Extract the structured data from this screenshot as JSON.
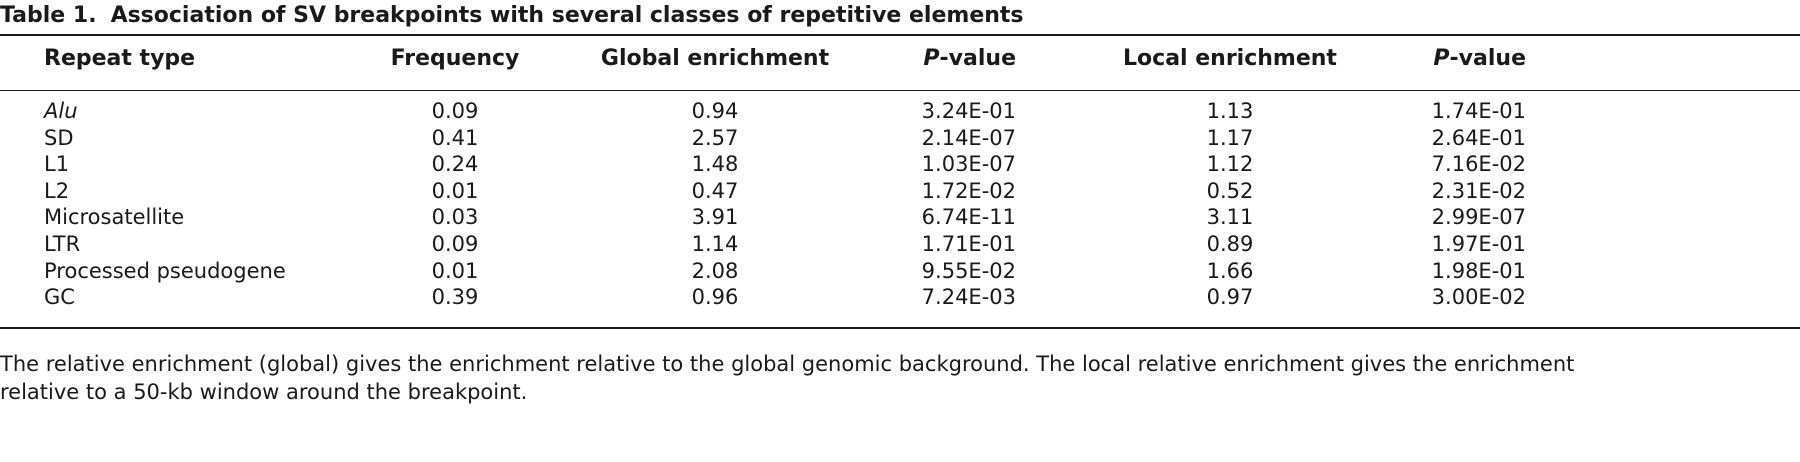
{
  "caption": {
    "label": "Table 1.",
    "title": "Association of SV breakpoints with several classes of repetitive elements"
  },
  "header": {
    "repeat_type": "Repeat type",
    "frequency": "Frequency",
    "global_enrichment": "Global enrichment",
    "p_value_1_italic": "P",
    "p_value_1_rest": "-value",
    "local_enrichment": "Local enrichment",
    "p_value_2_italic": "P",
    "p_value_2_rest": "-value"
  },
  "rows": [
    {
      "repeat_type": "Alu",
      "italic": true,
      "frequency": "0.09",
      "global_enrichment": "0.94",
      "global_p": "3.24E-01",
      "local_enrichment": "1.13",
      "local_p": "1.74E-01"
    },
    {
      "repeat_type": "SD",
      "italic": false,
      "frequency": "0.41",
      "global_enrichment": "2.57",
      "global_p": "2.14E-07",
      "local_enrichment": "1.17",
      "local_p": "2.64E-01"
    },
    {
      "repeat_type": "L1",
      "italic": false,
      "frequency": "0.24",
      "global_enrichment": "1.48",
      "global_p": "1.03E-07",
      "local_enrichment": "1.12",
      "local_p": "7.16E-02"
    },
    {
      "repeat_type": "L2",
      "italic": false,
      "frequency": "0.01",
      "global_enrichment": "0.47",
      "global_p": "1.72E-02",
      "local_enrichment": "0.52",
      "local_p": "2.31E-02"
    },
    {
      "repeat_type": "Microsatellite",
      "italic": false,
      "frequency": "0.03",
      "global_enrichment": "3.91",
      "global_p": "6.74E-11",
      "local_enrichment": "3.11",
      "local_p": "2.99E-07"
    },
    {
      "repeat_type": "LTR",
      "italic": false,
      "frequency": "0.09",
      "global_enrichment": "1.14",
      "global_p": "1.71E-01",
      "local_enrichment": "0.89",
      "local_p": "1.97E-01"
    },
    {
      "repeat_type": "Processed pseudogene",
      "italic": false,
      "frequency": "0.01",
      "global_enrichment": "2.08",
      "global_p": "9.55E-02",
      "local_enrichment": "1.66",
      "local_p": "1.98E-01"
    },
    {
      "repeat_type": "GC",
      "italic": false,
      "frequency": "0.39",
      "global_enrichment": "0.96",
      "global_p": "7.24E-03",
      "local_enrichment": "0.97",
      "local_p": "3.00E-02"
    }
  ],
  "footnote": {
    "line1": "The relative enrichment (global) gives the enrichment relative to the global genomic background. The local relative enrichment gives the enrichment",
    "line2": "relative to a 50-kb window around the breakpoint."
  }
}
